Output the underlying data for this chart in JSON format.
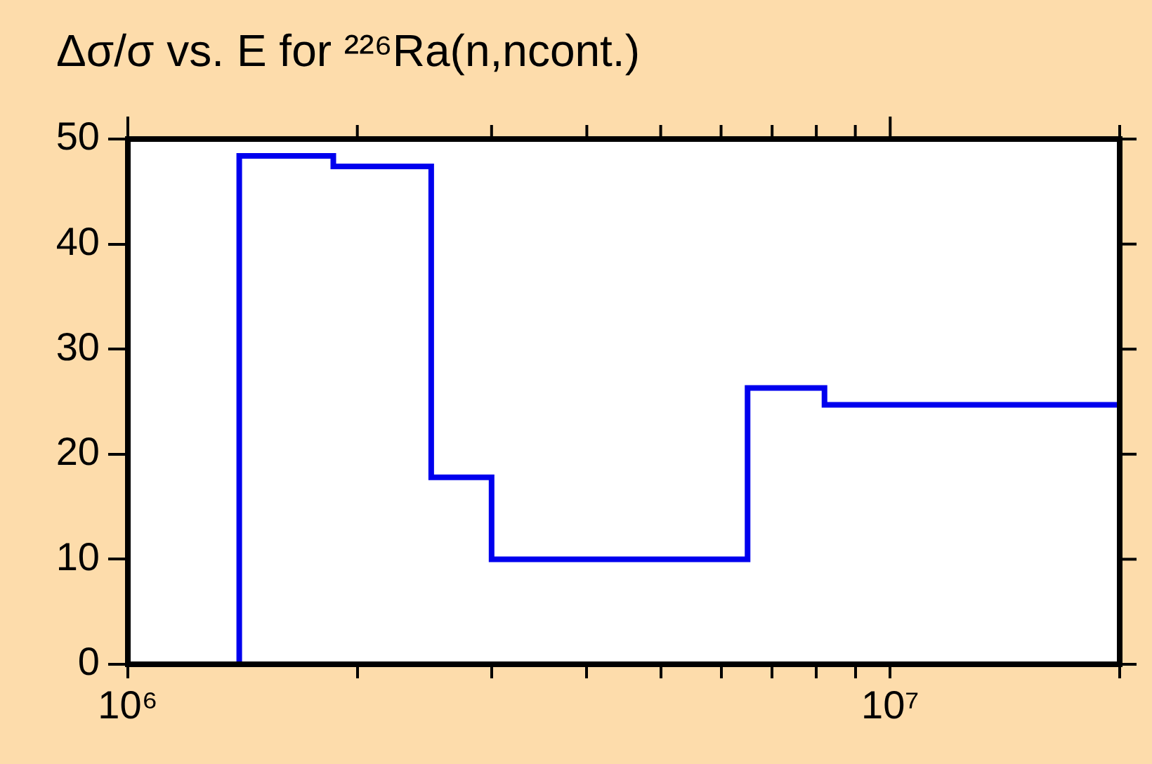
{
  "chart_data": {
    "type": "histogram",
    "title": "Δσ/σ vs. E for ²²⁶Ra(n,ncont.)",
    "bins": [
      1400000,
      1860000,
      2500000,
      3000000,
      6500000,
      8200000,
      20000000
    ],
    "values": [
      48.4,
      47.4,
      17.8,
      10,
      26.3,
      24.7
    ],
    "color": "#0000ee",
    "log": "x",
    "xlim": [
      1000000,
      20000000
    ],
    "xticks": [
      {
        "value": 1000000,
        "label": "10⁶"
      },
      {
        "value": 2000000,
        "label": null
      },
      {
        "value": 3000000,
        "label": null
      },
      {
        "value": 4000000,
        "label": null
      },
      {
        "value": 5000000,
        "label": null
      },
      {
        "value": 6000000,
        "label": null
      },
      {
        "value": 7000000,
        "label": null
      },
      {
        "value": 8000000,
        "label": null
      },
      {
        "value": 9000000,
        "label": null
      },
      {
        "value": 10000000,
        "label": "10⁷"
      },
      {
        "value": 20000000,
        "label": null
      }
    ],
    "ylim": [
      0,
      50
    ],
    "yticks": [
      0,
      10,
      20,
      30,
      40,
      50
    ]
  }
}
